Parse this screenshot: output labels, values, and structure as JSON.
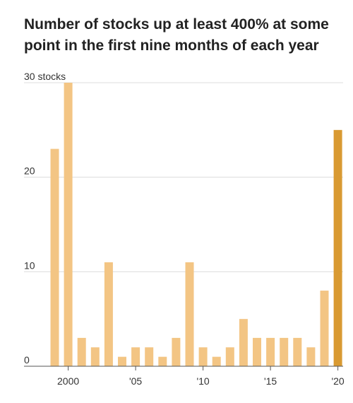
{
  "chart_data": {
    "type": "bar",
    "title": "Number of stocks up at least 400% at some point in the first nine months of each year",
    "xlabel": "",
    "ylabel": "",
    "x": [
      1999,
      2000,
      2001,
      2002,
      2003,
      2004,
      2005,
      2006,
      2007,
      2008,
      2009,
      2010,
      2011,
      2012,
      2013,
      2014,
      2015,
      2016,
      2017,
      2018,
      2019,
      2020
    ],
    "values": [
      23,
      30,
      3,
      2,
      11,
      1,
      2,
      2,
      1,
      3,
      11,
      2,
      1,
      2,
      5,
      3,
      3,
      3,
      3,
      2,
      8,
      25
    ],
    "ylim": [
      0,
      30
    ],
    "yticks": [
      0,
      10,
      20,
      30
    ],
    "ytick_labels": [
      "0",
      "10",
      "20",
      "30 stocks"
    ],
    "xticks": [
      2000,
      2005,
      2010,
      2015,
      2020
    ],
    "xtick_labels": [
      "2000",
      "'05",
      "'10",
      "'15",
      "'20"
    ],
    "grid": true,
    "colors": {
      "bar": "#f3c584",
      "highlight": "#d99a32",
      "grid": "#dcdcdc",
      "axis": "#555555"
    },
    "highlight_x": 2020
  }
}
